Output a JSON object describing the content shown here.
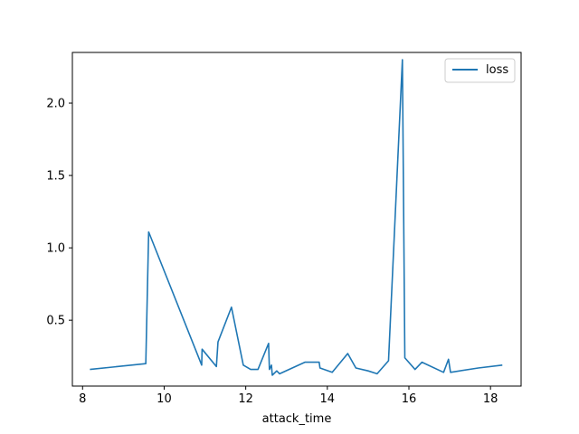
{
  "chart_data": {
    "type": "line",
    "xlabel": "attack_time",
    "ylabel": "",
    "title": "",
    "xlim": [
      7.75,
      18.75
    ],
    "ylim": [
      0.045,
      2.35
    ],
    "xticks": [
      8,
      10,
      12,
      14,
      16,
      18
    ],
    "yticks": [
      0.5,
      1.0,
      1.5,
      2.0
    ],
    "xtick_labels": [
      "8",
      "10",
      "12",
      "14",
      "16",
      "18"
    ],
    "ytick_labels": [
      "0.5",
      "1.0",
      "1.5",
      "2.0"
    ],
    "grid": false,
    "legend": {
      "position": "top-right",
      "entries": [
        "loss"
      ]
    },
    "series": [
      {
        "name": "loss",
        "color": "#1f77b4",
        "x": [
          8.18,
          9.55,
          9.62,
          10.92,
          10.93,
          11.28,
          11.32,
          11.65,
          11.94,
          12.12,
          12.3,
          12.56,
          12.58,
          12.63,
          12.65,
          12.76,
          12.83,
          13.45,
          13.8,
          13.82,
          14.12,
          14.5,
          14.7,
          15.0,
          15.22,
          15.5,
          15.84,
          15.9,
          16.15,
          16.32,
          16.85,
          16.97,
          17.02,
          17.7,
          18.29
        ],
        "y": [
          0.16,
          0.2,
          1.11,
          0.19,
          0.3,
          0.18,
          0.35,
          0.59,
          0.19,
          0.16,
          0.16,
          0.34,
          0.16,
          0.19,
          0.12,
          0.15,
          0.13,
          0.21,
          0.21,
          0.17,
          0.14,
          0.27,
          0.17,
          0.15,
          0.13,
          0.22,
          2.3,
          0.24,
          0.16,
          0.21,
          0.14,
          0.23,
          0.14,
          0.17,
          0.19
        ]
      }
    ]
  }
}
